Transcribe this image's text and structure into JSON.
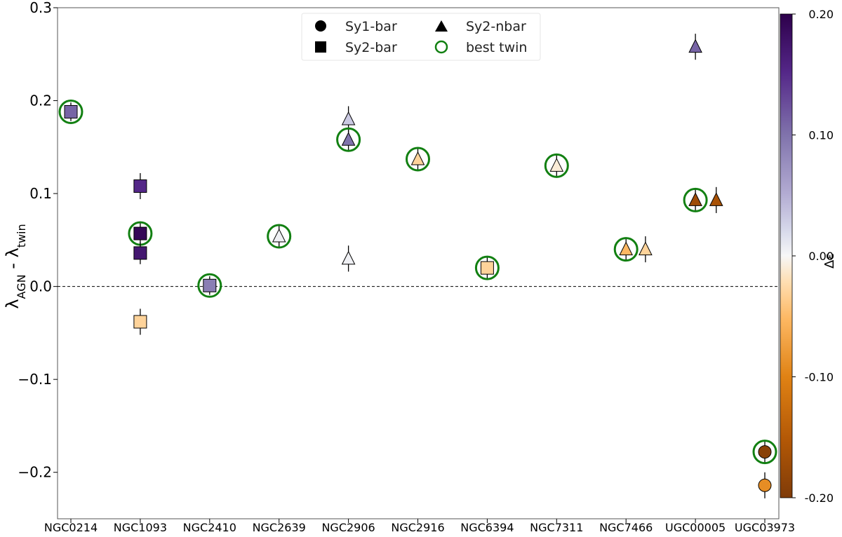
{
  "chart_data": {
    "type": "scatter",
    "ylabel_main": "λ",
    "ylabel_sub1": "AGN",
    "ylabel_mid": " - λ",
    "ylabel_sub2": "twin",
    "colorbar_label": "Δε",
    "ylim": [
      -0.25,
      0.3
    ],
    "yticks": [
      -0.2,
      -0.1,
      0.0,
      0.1,
      0.2,
      0.3
    ],
    "ytick_labels": [
      "−0.2",
      "−0.1",
      "0.0",
      "0.1",
      "0.2",
      "0.3"
    ],
    "colorbar_range": [
      -0.2,
      0.2
    ],
    "colorbar_ticks": [
      -0.2,
      -0.1,
      0.0,
      0.1,
      0.2
    ],
    "colorbar_tick_labels": [
      "-0.20",
      "-0.10",
      "0.00",
      "0.10",
      "0.20"
    ],
    "reference_line_y": 0.0,
    "categories": [
      "NGC0214",
      "NGC1093",
      "NGC2410",
      "NGC2639",
      "NGC2906",
      "NGC2916",
      "NGC6394",
      "NGC7311",
      "NGC7466",
      "UGC00005",
      "UGC03973"
    ],
    "legend": [
      {
        "marker": "circle",
        "label": "Sy1-bar"
      },
      {
        "marker": "triangle",
        "label": "Sy2-nbar"
      },
      {
        "marker": "square",
        "label": "Sy2-bar"
      },
      {
        "marker": "ring",
        "label": "best twin"
      }
    ],
    "legend_placement": "top-center",
    "points": [
      {
        "cat": 0,
        "offset": 0,
        "y": 0.188,
        "err": 0.01,
        "marker": "square",
        "de": 0.11,
        "best": true
      },
      {
        "cat": 1,
        "offset": 0,
        "y": 0.108,
        "err": 0.014,
        "marker": "square",
        "de": 0.15,
        "best": false
      },
      {
        "cat": 1,
        "offset": 0,
        "y": 0.057,
        "err": 0.012,
        "marker": "square",
        "de": 0.19,
        "best": true
      },
      {
        "cat": 1,
        "offset": 0,
        "y": 0.036,
        "err": 0.012,
        "marker": "square",
        "de": 0.17,
        "best": false
      },
      {
        "cat": 1,
        "offset": 0,
        "y": -0.038,
        "err": 0.014,
        "marker": "square",
        "de": -0.03,
        "best": false
      },
      {
        "cat": 2,
        "offset": 0,
        "y": 0.001,
        "err": 0.01,
        "marker": "square",
        "de": 0.09,
        "best": true
      },
      {
        "cat": 3,
        "offset": 0,
        "y": 0.054,
        "err": 0.012,
        "marker": "triangle",
        "de": 0.005,
        "best": true
      },
      {
        "cat": 4,
        "offset": 0,
        "y": 0.18,
        "err": 0.014,
        "marker": "triangle",
        "de": 0.03,
        "best": false
      },
      {
        "cat": 4,
        "offset": 0,
        "y": 0.158,
        "err": 0.012,
        "marker": "triangle",
        "de": 0.1,
        "best": true
      },
      {
        "cat": 4,
        "offset": 0,
        "y": 0.03,
        "err": 0.014,
        "marker": "triangle",
        "de": 0.005,
        "best": false
      },
      {
        "cat": 5,
        "offset": 0,
        "y": 0.137,
        "err": 0.012,
        "marker": "triangle",
        "de": -0.03,
        "best": true
      },
      {
        "cat": 6,
        "offset": 0,
        "y": 0.02,
        "err": 0.012,
        "marker": "square",
        "de": -0.03,
        "best": true
      },
      {
        "cat": 7,
        "offset": 0,
        "y": 0.13,
        "err": 0.012,
        "marker": "triangle",
        "de": -0.01,
        "best": true
      },
      {
        "cat": 8,
        "offset": 0,
        "y": 0.04,
        "err": 0.012,
        "marker": "triangle",
        "de": -0.05,
        "best": true
      },
      {
        "cat": 8,
        "offset": 0.28,
        "y": 0.04,
        "err": 0.014,
        "marker": "triangle",
        "de": -0.03,
        "best": false
      },
      {
        "cat": 9,
        "offset": 0,
        "y": 0.258,
        "err": 0.014,
        "marker": "triangle",
        "de": 0.11,
        "best": false
      },
      {
        "cat": 9,
        "offset": 0,
        "y": 0.093,
        "err": 0.012,
        "marker": "triangle",
        "de": -0.17,
        "best": true
      },
      {
        "cat": 9,
        "offset": 0.3,
        "y": 0.093,
        "err": 0.014,
        "marker": "triangle",
        "de": -0.16,
        "best": false
      },
      {
        "cat": 10,
        "offset": 0,
        "y": -0.178,
        "err": 0.012,
        "marker": "circle",
        "de": -0.19,
        "best": true
      },
      {
        "cat": 10,
        "offset": 0,
        "y": -0.214,
        "err": 0.014,
        "marker": "circle",
        "de": -0.09,
        "best": false
      }
    ]
  }
}
